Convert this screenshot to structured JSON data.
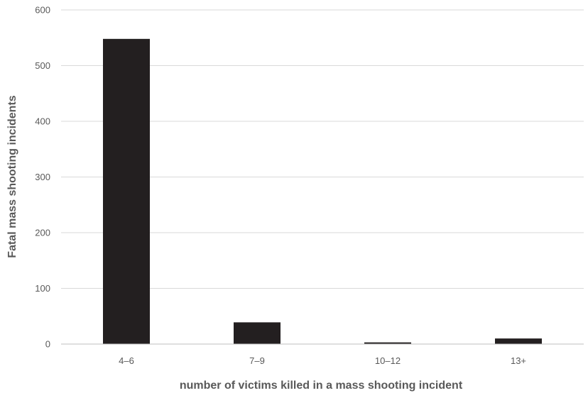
{
  "chart_data": {
    "type": "bar",
    "title": "",
    "xlabel": "number of victims killed in a mass shooting incident",
    "ylabel": "Fatal mass shooting incidents",
    "categories": [
      "4–6",
      "7–9",
      "10–12",
      "13+"
    ],
    "values": [
      548,
      39,
      3,
      10
    ],
    "ylim": [
      0,
      600
    ],
    "yticks": [
      0,
      100,
      200,
      300,
      400,
      500,
      600
    ],
    "grid": true,
    "legend": "none",
    "colors": {
      "bar": "#231f20",
      "grid": "#d9d9d9",
      "axis": "#bfbfbf",
      "text": "#595959"
    }
  }
}
